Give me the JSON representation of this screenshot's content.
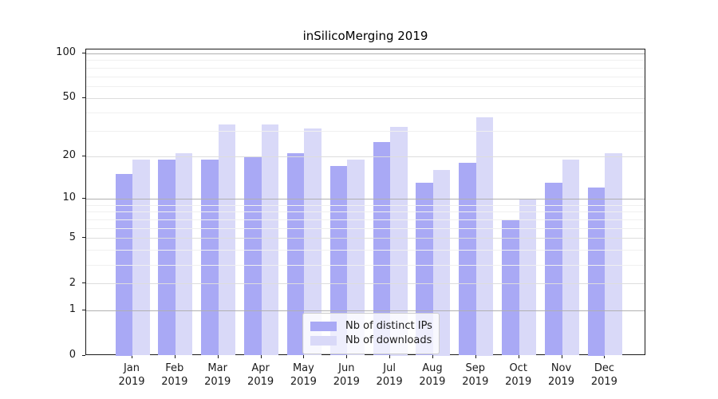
{
  "chart_data": {
    "type": "bar",
    "title": "inSilicoMerging 2019",
    "categories": [
      "Jan",
      "Feb",
      "Mar",
      "Apr",
      "May",
      "Jun",
      "Jul",
      "Aug",
      "Sep",
      "Oct",
      "Nov",
      "Dec"
    ],
    "x_year_label": "2019",
    "series": [
      {
        "name": "Nb of distinct IPs",
        "color": "#a9a9f5",
        "values": [
          15,
          19,
          19,
          20,
          21,
          17,
          25,
          13,
          18,
          7,
          13,
          12
        ]
      },
      {
        "name": "Nb of downloads",
        "color": "#d9d9f8",
        "values": [
          19,
          21,
          33,
          33,
          31,
          19,
          32,
          16,
          37,
          10,
          19,
          21
        ]
      }
    ],
    "y_axis": {
      "scale": "log1p",
      "ylim": [
        0,
        106
      ],
      "major_ticks": [
        0,
        1,
        2,
        5,
        10,
        20,
        50,
        100
      ],
      "decade_gridlines": [
        1,
        10,
        100
      ],
      "mid_gridlines": [
        2,
        5,
        20,
        50
      ],
      "minor_gridlines": [
        3,
        4,
        6,
        7,
        8,
        9,
        30,
        40,
        60,
        70,
        80,
        90
      ]
    },
    "legend": {
      "position": "lower center"
    },
    "grid": true
  }
}
